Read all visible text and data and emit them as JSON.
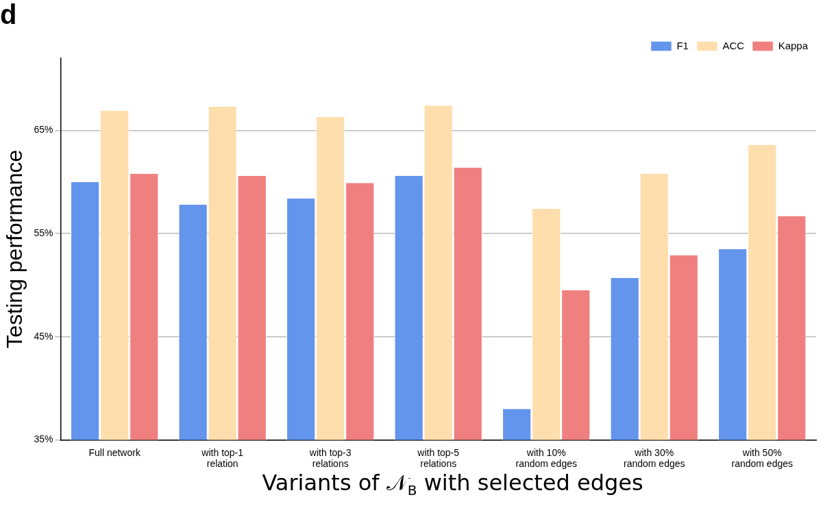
{
  "chart_data": {
    "type": "bar",
    "title": "d",
    "xlabel": "Variants of 𝒩$_{B}$ with selected edges",
    "ylabel": "Testing performance",
    "categories": [
      "Full network",
      "with top-1 relation",
      "with top-3 relations",
      "with top-5 relations",
      "with 10% random edges",
      "with 30% random edges",
      "with 50% random edges"
    ],
    "series": [
      {
        "name": "F1",
        "color": "#6495ed",
        "values": [
          60.0,
          57.8,
          58.4,
          60.6,
          38.0,
          50.7,
          53.5
        ]
      },
      {
        "name": "ACC",
        "color": "#ffdead",
        "values": [
          66.9,
          67.3,
          66.3,
          67.4,
          57.4,
          60.8,
          63.6
        ]
      },
      {
        "name": "Kappa",
        "color": "#f08080",
        "values": [
          60.8,
          60.6,
          59.9,
          61.4,
          49.5,
          52.9,
          56.7
        ]
      }
    ],
    "ylim": [
      35,
      72
    ],
    "yticks": [
      {
        "value": 35,
        "label": "35%"
      },
      {
        "value": 45,
        "label": "45%"
      },
      {
        "value": 55,
        "label": "55%"
      },
      {
        "value": 65,
        "label": "65%"
      }
    ],
    "grid": "y",
    "legend": "top right"
  }
}
